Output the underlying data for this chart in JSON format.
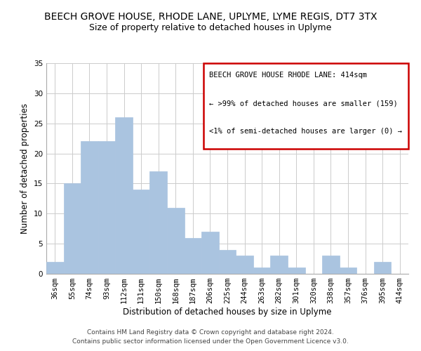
{
  "title": "BEECH GROVE HOUSE, RHODE LANE, UPLYME, LYME REGIS, DT7 3TX",
  "subtitle": "Size of property relative to detached houses in Uplyme",
  "xlabel": "Distribution of detached houses by size in Uplyme",
  "ylabel": "Number of detached properties",
  "categories": [
    "36sqm",
    "55sqm",
    "74sqm",
    "93sqm",
    "112sqm",
    "131sqm",
    "150sqm",
    "168sqm",
    "187sqm",
    "206sqm",
    "225sqm",
    "244sqm",
    "263sqm",
    "282sqm",
    "301sqm",
    "320sqm",
    "338sqm",
    "357sqm",
    "376sqm",
    "395sqm",
    "414sqm"
  ],
  "values": [
    2,
    15,
    22,
    22,
    26,
    14,
    17,
    11,
    6,
    7,
    4,
    3,
    1,
    3,
    1,
    0,
    3,
    1,
    0,
    2,
    0
  ],
  "bar_color": "#aac4e0",
  "bar_edge_color": "#aac4e0",
  "ylim": [
    0,
    35
  ],
  "yticks": [
    0,
    5,
    10,
    15,
    20,
    25,
    30,
    35
  ],
  "annotation_box_text_line1": "BEECH GROVE HOUSE RHODE LANE: 414sqm",
  "annotation_box_text_line2": "← >99% of detached houses are smaller (159)",
  "annotation_box_text_line3": "<1% of semi-detached houses are larger (0) →",
  "annotation_box_color": "#cc0000",
  "footer_line1": "Contains HM Land Registry data © Crown copyright and database right 2024.",
  "footer_line2": "Contains public sector information licensed under the Open Government Licence v3.0.",
  "background_color": "#ffffff",
  "grid_color": "#cccccc",
  "title_fontsize": 10,
  "subtitle_fontsize": 9,
  "axis_label_fontsize": 8.5,
  "tick_fontsize": 7.5,
  "annotation_fontsize": 7.5,
  "footer_fontsize": 6.5
}
